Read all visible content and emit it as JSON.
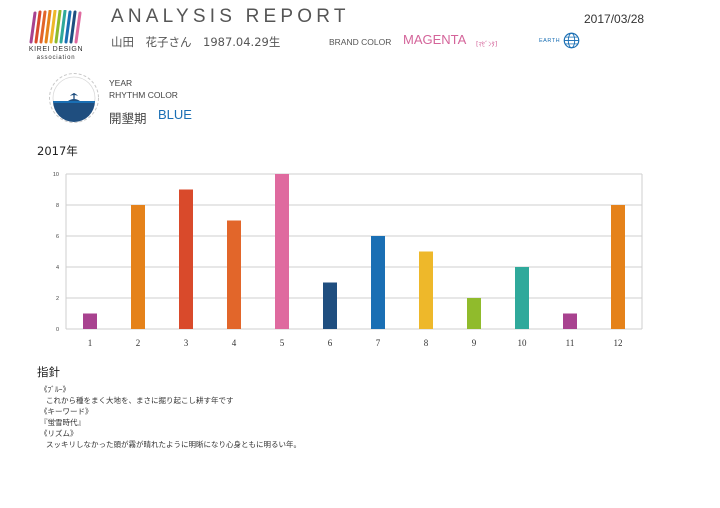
{
  "header": {
    "logo_main": "KIREI DESIGN",
    "logo_sub": "association",
    "title": "ANALYSIS REPORT",
    "date": "2017/03/28",
    "person": "山田　花子さん　1987.04.29生",
    "brand_label": "BRAND COLOR",
    "brand_value": "MAGENTA",
    "brand_reading": "[ﾏｾﾞﾝﾀ]",
    "earth_label": "EARTH"
  },
  "rhythm": {
    "year_label": "YEAR",
    "rhythm_label": "RHYTHM COLOR",
    "period_name": "開墾期",
    "period_color": "BLUE"
  },
  "chart_heading": "2017年",
  "chart_data": {
    "type": "bar",
    "categories": [
      "1",
      "2",
      "3",
      "4",
      "5",
      "6",
      "7",
      "8",
      "9",
      "10",
      "11",
      "12"
    ],
    "values": [
      1,
      8,
      9,
      7,
      10,
      3,
      6,
      5,
      2,
      4,
      1,
      8
    ],
    "colors": [
      "#a8428f",
      "#e5821a",
      "#d94a2b",
      "#e2662a",
      "#df6a9f",
      "#1f4e7f",
      "#1a6fb4",
      "#eeb82a",
      "#90bb2c",
      "#2fa99b",
      "#a8428f",
      "#e5821a"
    ],
    "ylim": [
      0,
      10
    ],
    "yticks": [
      0,
      2,
      4,
      6,
      8,
      10
    ],
    "grid": true
  },
  "guide": {
    "heading": "指針",
    "lines": [
      "《ﾌﾞﾙｰ》",
      "これから種をまく大地を、まさに掘り起こし耕す年です",
      "《キーワード》",
      "『蛍雪時代』",
      "《リズム》",
      "スッキリしなかった頭が霧が晴れたように明晰になり心身ともに明るい年。"
    ]
  },
  "colors": {
    "brand": "#d4649a",
    "rhythm": "#1a6fb4"
  }
}
